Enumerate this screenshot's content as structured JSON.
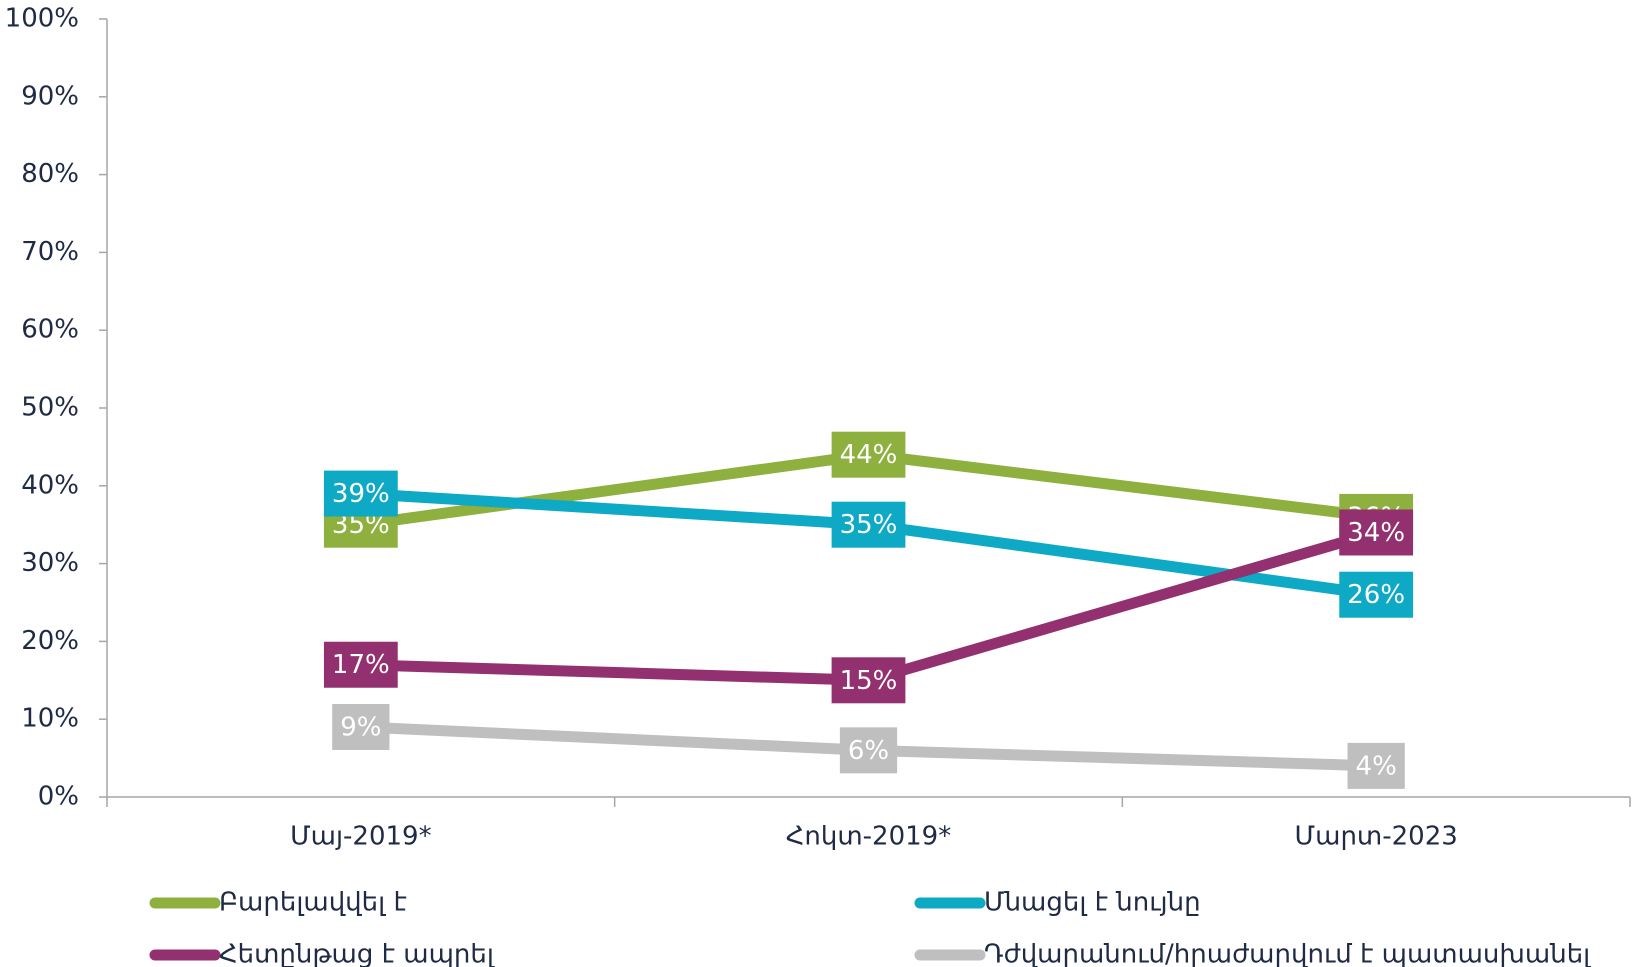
{
  "chart_data": {
    "type": "line",
    "categories": [
      "Մայ-2019*",
      "Հոկտ-2019*",
      "Մարտ-2023"
    ],
    "series": [
      {
        "name": "Բարելավվել է",
        "color": "#8db03f",
        "values": [
          35,
          44,
          36
        ],
        "value_labels": [
          "35%",
          "44%",
          "36%"
        ]
      },
      {
        "name": "Մնացել է նույնը",
        "color": "#0ea9c4",
        "values": [
          39,
          35,
          26
        ],
        "value_labels": [
          "39%",
          "35%",
          "26%"
        ]
      },
      {
        "name": "Հետընթաց է ապրել",
        "color": "#93306f",
        "values": [
          17,
          15,
          34
        ],
        "value_labels": [
          "17%",
          "15%",
          "34%"
        ]
      },
      {
        "name": "Դժվարանում/հրաժարվում է պատասխանել",
        "color": "#bfbfbf",
        "values": [
          9,
          6,
          4
        ],
        "value_labels": [
          "9%",
          "6%",
          "4%"
        ]
      }
    ],
    "ylim": [
      0,
      100
    ],
    "yticks": [
      {
        "value": 0,
        "label": "0%"
      },
      {
        "value": 10,
        "label": "10%"
      },
      {
        "value": 20,
        "label": "20%"
      },
      {
        "value": 30,
        "label": "30%"
      },
      {
        "value": 40,
        "label": "40%"
      },
      {
        "value": 50,
        "label": "50%"
      },
      {
        "value": 60,
        "label": "60%"
      },
      {
        "value": 70,
        "label": "70%"
      },
      {
        "value": 80,
        "label": "80%"
      },
      {
        "value": 90,
        "label": "90%"
      },
      {
        "value": 100,
        "label": "100%"
      }
    ],
    "legend": "bottom"
  }
}
